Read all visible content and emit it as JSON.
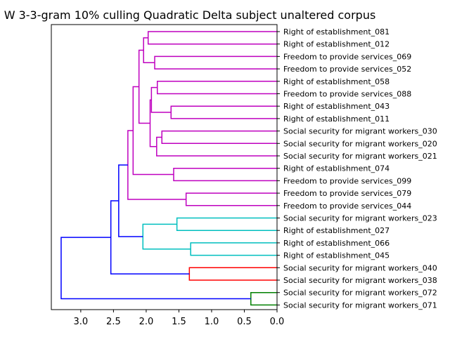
{
  "chart_data": {
    "type": "dendrogram",
    "title": "W 3-3-gram 10% culling Quadratic Delta subject unaltered corpus",
    "xlabel": "",
    "ylabel": "",
    "xlim": [
      3.45,
      0.0
    ],
    "x_ticks": [
      "3.0",
      "2.5",
      "2.0",
      "1.5",
      "1.0",
      "0.5",
      "0.0"
    ],
    "x_tick_values": [
      3.0,
      2.5,
      2.0,
      1.5,
      1.0,
      0.5,
      0.0
    ],
    "orientation": "left",
    "leaves": [
      "Right of establishment_081",
      "Right of establishment_012",
      "Freedom to provide services_069",
      "Freedom to provide services_052",
      "Right of establishment_058",
      "Freedom to provide services_088",
      "Right of establishment_043",
      "Right of establishment_011",
      "Social security for migrant workers_030",
      "Social security for migrant workers_020",
      "Social security for migrant workers_021",
      "Right of establishment_074",
      "Freedom to provide services_099",
      "Freedom to provide services_079",
      "Freedom to provide services_044",
      "Social security for migrant workers_023",
      "Right of establishment_027",
      "Right of establishment_066",
      "Right of establishment_045",
      "Social security for migrant workers_040",
      "Social security for migrant workers_038",
      "Social security for migrant workers_072",
      "Social security for migrant workers_071"
    ],
    "merges": [
      {
        "id": "m1",
        "a": "L0",
        "b": "L1",
        "height": 1.97,
        "color": "#bf00bf"
      },
      {
        "id": "m2",
        "a": "L2",
        "b": "L3",
        "height": 1.87,
        "color": "#bf00bf"
      },
      {
        "id": "m3",
        "a": "m1",
        "b": "m2",
        "height": 2.04,
        "color": "#bf00bf"
      },
      {
        "id": "m4",
        "a": "L4",
        "b": "L5",
        "height": 1.83,
        "color": "#bf00bf"
      },
      {
        "id": "m5",
        "a": "L6",
        "b": "L7",
        "height": 1.62,
        "color": "#bf00bf"
      },
      {
        "id": "m6",
        "a": "m4",
        "b": "m5",
        "height": 1.92,
        "color": "#bf00bf"
      },
      {
        "id": "m7",
        "a": "L8",
        "b": "L9",
        "height": 1.76,
        "color": "#bf00bf"
      },
      {
        "id": "m8",
        "a": "m7",
        "b": "L10",
        "height": 1.84,
        "color": "#bf00bf"
      },
      {
        "id": "m9",
        "a": "m6",
        "b": "m8",
        "height": 1.94,
        "color": "#bf00bf"
      },
      {
        "id": "m10",
        "a": "m3",
        "b": "m9",
        "height": 2.11,
        "color": "#bf00bf"
      },
      {
        "id": "m11",
        "a": "L11",
        "b": "L12",
        "height": 1.58,
        "color": "#bf00bf"
      },
      {
        "id": "m12",
        "a": "m10",
        "b": "m11",
        "height": 2.2,
        "color": "#bf00bf"
      },
      {
        "id": "m13",
        "a": "L13",
        "b": "L14",
        "height": 1.39,
        "color": "#bf00bf"
      },
      {
        "id": "m14",
        "a": "m12",
        "b": "m13",
        "height": 2.28,
        "color": "#bf00bf"
      },
      {
        "id": "m15",
        "a": "L15",
        "b": "L16",
        "height": 1.53,
        "color": "#00bfbf"
      },
      {
        "id": "m16",
        "a": "L17",
        "b": "L18",
        "height": 1.32,
        "color": "#00bfbf"
      },
      {
        "id": "m17",
        "a": "m15",
        "b": "m16",
        "height": 2.05,
        "color": "#00bfbf"
      },
      {
        "id": "m18",
        "a": "m14",
        "b": "m17",
        "height": 2.42,
        "color": "#0000ff"
      },
      {
        "id": "m19",
        "a": "L19",
        "b": "L20",
        "height": 1.34,
        "color": "#ff0000"
      },
      {
        "id": "m20",
        "a": "m18",
        "b": "m19",
        "height": 2.54,
        "color": "#0000ff"
      },
      {
        "id": "m21",
        "a": "L21",
        "b": "L22",
        "height": 0.4,
        "color": "#008000"
      },
      {
        "id": "m22",
        "a": "m20",
        "b": "m21",
        "height": 3.3,
        "color": "#0000ff"
      }
    ],
    "grid": false,
    "legend": "none"
  }
}
